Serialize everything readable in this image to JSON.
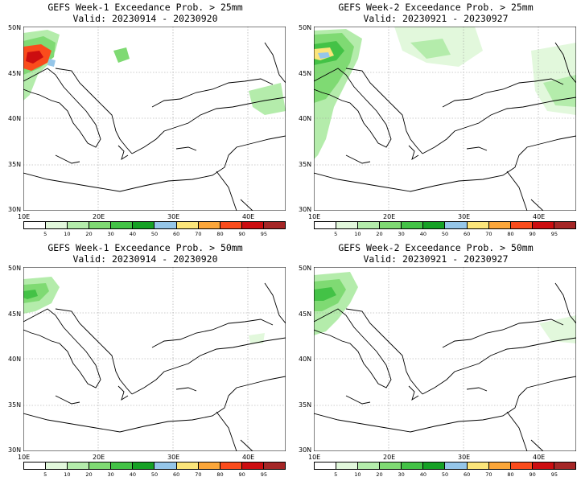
{
  "panels": [
    {
      "title_line1": "GEFS Week-1 Exceedance Prob. > 25mm",
      "title_line2": "Valid: 20230914 - 20230920",
      "lat_labels": [
        "50N",
        "45N",
        "40N",
        "35N",
        "30N"
      ],
      "lon_labels": [
        "10E",
        "20E",
        "30E",
        "40E"
      ],
      "legend_labels": [
        "5",
        "10",
        "20",
        "30",
        "40",
        "50",
        "60",
        "70",
        "80",
        "90",
        "95"
      ]
    },
    {
      "title_line1": "GEFS Week-2 Exceedance Prob. > 25mm",
      "title_line2": "Valid: 20230921 - 20230927",
      "lat_labels": [
        "50N",
        "45N",
        "40N",
        "35N",
        "30N"
      ],
      "lon_labels": [
        "10E",
        "20E",
        "30E",
        "40E"
      ],
      "legend_labels": [
        "5",
        "10",
        "20",
        "30",
        "40",
        "50",
        "60",
        "70",
        "80",
        "90",
        "95"
      ]
    },
    {
      "title_line1": "GEFS Week-1 Exceedance Prob. > 50mm",
      "title_line2": "Valid: 20230914 - 20230920",
      "lat_labels": [
        "50N",
        "45N",
        "40N",
        "35N",
        "30N"
      ],
      "lon_labels": [
        "10E",
        "20E",
        "30E",
        "40E"
      ],
      "legend_labels": [
        "5",
        "10",
        "20",
        "30",
        "40",
        "50",
        "60",
        "70",
        "80",
        "90",
        "95"
      ]
    },
    {
      "title_line1": "GEFS Week-2 Exceedance Prob. > 50mm",
      "title_line2": "Valid: 20230921 - 20230927",
      "lat_labels": [
        "50N",
        "45N",
        "40N",
        "35N",
        "30N"
      ],
      "lon_labels": [
        "10E",
        "20E",
        "30E",
        "40E"
      ],
      "legend_labels": [
        "5",
        "10",
        "20",
        "30",
        "40",
        "50",
        "60",
        "70",
        "80",
        "90",
        "95"
      ]
    }
  ],
  "legend_colors": [
    "#ffffff",
    "#e2f8dc",
    "#b4ecab",
    "#7fda73",
    "#43c246",
    "#16a125",
    "#95c6e9",
    "#fbe57a",
    "#fba63a",
    "#fa4c1c",
    "#cc0d10",
    "#a52626"
  ],
  "colors": {
    "coast": "#000000",
    "grid": "#9a9a9a"
  }
}
